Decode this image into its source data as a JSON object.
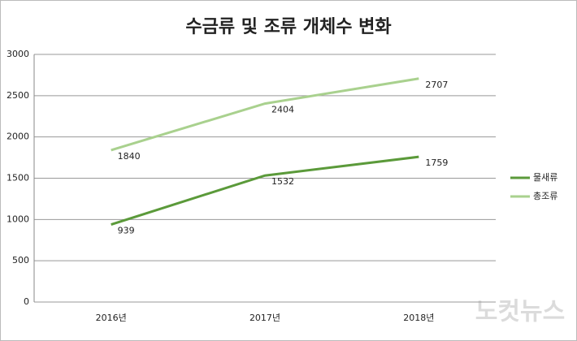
{
  "chart_data": {
    "type": "line",
    "title": "수금류 및 조류 개체수 변화",
    "categories": [
      "2016년",
      "2017년",
      "2018년"
    ],
    "series": [
      {
        "name": "물새류",
        "color": "#5b9a3a",
        "values": [
          939,
          1532,
          1759
        ]
      },
      {
        "name": "총조류",
        "color": "#a9d18e",
        "values": [
          1840,
          2404,
          2707
        ]
      }
    ],
    "ylim": [
      0,
      3000
    ],
    "yticks": [
      0,
      500,
      1000,
      1500,
      2000,
      2500,
      3000
    ],
    "grid": true,
    "legend": "right"
  },
  "watermark": "노컷뉴스"
}
